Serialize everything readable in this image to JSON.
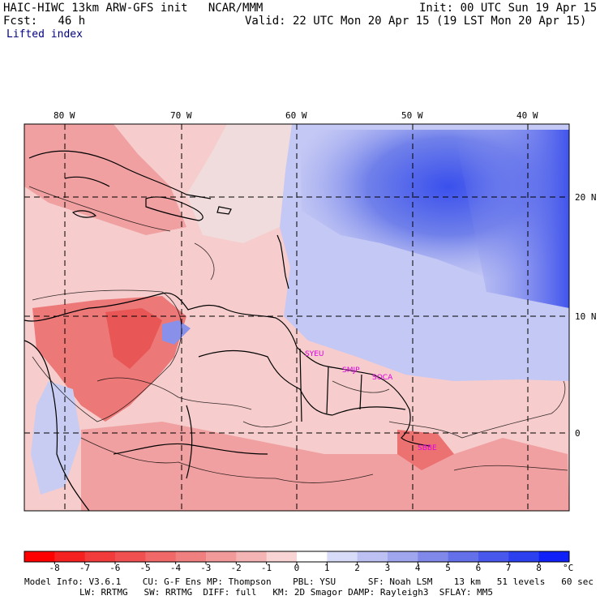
{
  "header": {
    "model": "HAIC-HIWC 13km ARW-GFS init",
    "org": "NCAR/MMM",
    "init": "Init: 00 UTC Sun 19 Apr 15",
    "fcst_label": "Fcst:",
    "fcst_value": "46 h",
    "valid": "Valid: 22 UTC Mon 20 Apr 15 (19 LST Mon 20 Apr 15)",
    "field": "Lifted index"
  },
  "map": {
    "lon_labels": [
      "80 W",
      "70 W",
      "60 W",
      "50 W",
      "40 W"
    ],
    "lat_labels": [
      "20 N",
      "10 N",
      "0"
    ],
    "stations": [
      "SYEU",
      "SMJP",
      "SOCA",
      "SBBE"
    ]
  },
  "colorbar": {
    "ticks": [
      "-8",
      "-7",
      "-6",
      "-5",
      "-4",
      "-3",
      "-2",
      "-1",
      "0",
      "1",
      "2",
      "3",
      "4",
      "5",
      "6",
      "7",
      "8"
    ],
    "unit": "°C",
    "colors": [
      "#ff0000",
      "#f52020",
      "#f23c3c",
      "#f05050",
      "#f06868",
      "#f08080",
      "#f29a9a",
      "#f5b4b4",
      "#f8d4d4",
      "#ffffff",
      "#d8dcf8",
      "#bcc0f2",
      "#a0a6ee",
      "#8088ea",
      "#6470ea",
      "#4858ec",
      "#2c40f0",
      "#1020f8"
    ]
  },
  "footer": {
    "line1": "Model Info: V3.6.1    CU: G-F Ens MP: Thompson    PBL: YSU      SF: Noah LSM    13 km   51 levels   60 sec",
    "line2": "LW: RRTMG   SW: RRTMG  DIFF: full   KM: 2D Smagor DAMP: Rayleigh3  SFLAY: MM5"
  }
}
